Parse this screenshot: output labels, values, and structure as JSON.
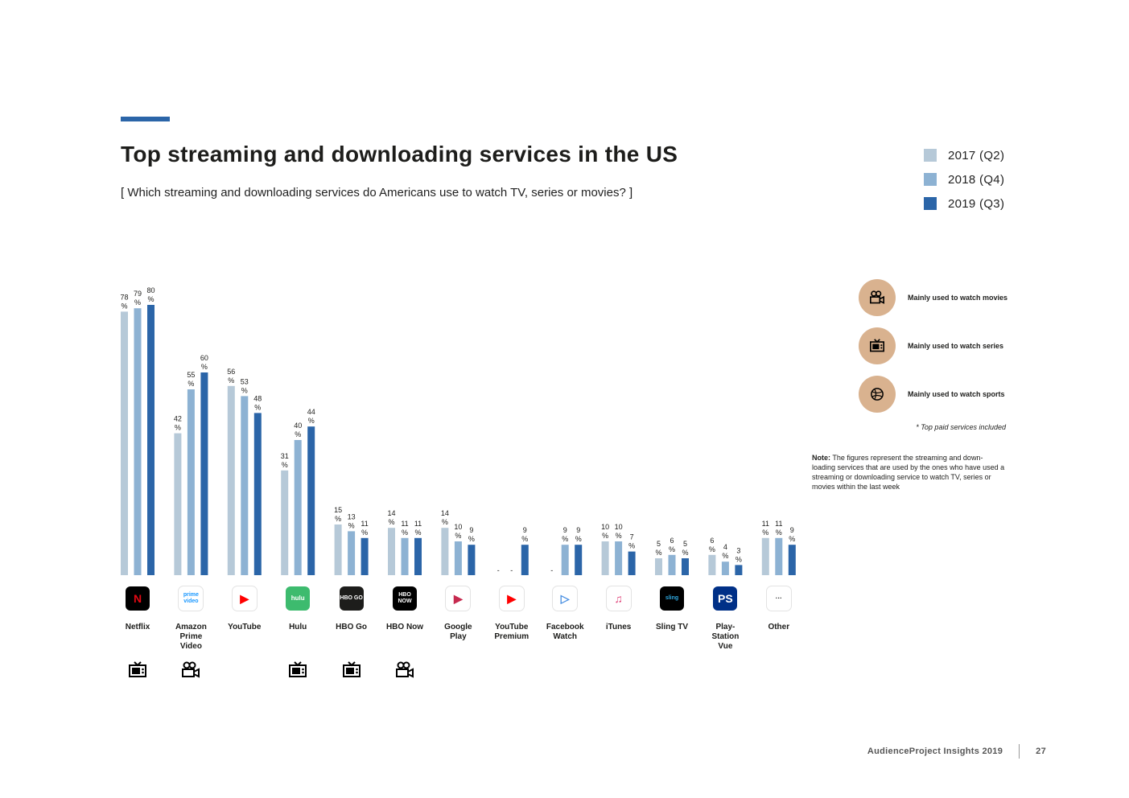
{
  "title": "Top streaming and downloading services in the US",
  "subtitle": "[ Which streaming and downloading services do Americans use to watch TV, series or movies? ]",
  "legend": [
    {
      "label": "2017 (Q2)",
      "color": "#b6c9d8"
    },
    {
      "label": "2018 (Q4)",
      "color": "#8db2d3"
    },
    {
      "label": "2019 (Q3)",
      "color": "#2b65a8"
    }
  ],
  "chart_data": {
    "type": "bar",
    "title": "Top streaming and downloading services in the US",
    "categories": [
      "Netflix",
      "Amazon Prime Video",
      "YouTube",
      "Hulu",
      "HBO Go",
      "HBO Now",
      "Google Play",
      "YouTube Premium",
      "Facebook Watch",
      "iTunes",
      "Sling TV",
      "Play-Station Vue",
      "Other"
    ],
    "category_lines": [
      [
        "Netflix"
      ],
      [
        "Amazon",
        "Prime",
        "Video"
      ],
      [
        "YouTube"
      ],
      [
        "Hulu"
      ],
      [
        "HBO Go"
      ],
      [
        "HBO Now"
      ],
      [
        "Google",
        "Play"
      ],
      [
        "YouTube",
        "Premium"
      ],
      [
        "Facebook",
        "Watch"
      ],
      [
        "iTunes"
      ],
      [
        "Sling TV"
      ],
      [
        "Play-",
        "Station",
        "Vue"
      ],
      [
        "Other"
      ]
    ],
    "series": [
      {
        "name": "2017 (Q2)",
        "color": "#b6c9d8",
        "values": [
          78,
          42,
          56,
          31,
          15,
          14,
          14,
          null,
          null,
          10,
          5,
          6,
          11
        ]
      },
      {
        "name": "2018 (Q4)",
        "color": "#8db2d3",
        "values": [
          79,
          55,
          53,
          40,
          13,
          11,
          10,
          null,
          9,
          10,
          6,
          4,
          11
        ]
      },
      {
        "name": "2019 (Q3)",
        "color": "#2b65a8",
        "values": [
          80,
          60,
          48,
          44,
          11,
          11,
          9,
          9,
          9,
          7,
          5,
          3,
          9
        ]
      }
    ],
    "missing_label": "-",
    "unit": "%",
    "ylim": [
      0,
      80
    ],
    "xlabel": "",
    "ylabel": ""
  },
  "logos": [
    {
      "name": "netflix-logo",
      "text": "N",
      "bg": "#000000",
      "fg": "#e50914"
    },
    {
      "name": "prime-video-logo",
      "text": "prime video",
      "bg": "#ffffff",
      "fg": "#1a98ff"
    },
    {
      "name": "youtube-logo",
      "text": "▶",
      "bg": "#ffffff",
      "fg": "#ff0000"
    },
    {
      "name": "hulu-logo",
      "text": "hulu",
      "bg": "#3dbb6e",
      "fg": "#ffffff"
    },
    {
      "name": "hbo-go-logo",
      "text": "HBO GO",
      "bg": "#1d1d1b",
      "fg": "#ffffff"
    },
    {
      "name": "hbo-now-logo",
      "text": "HBO NOW",
      "bg": "#000000",
      "fg": "#ffffff"
    },
    {
      "name": "google-play-logo",
      "text": "▶",
      "bg": "#ffffff",
      "fg": "#c62a4f"
    },
    {
      "name": "youtube-premium-logo",
      "text": "▶",
      "bg": "#ffffff",
      "fg": "#ff0000"
    },
    {
      "name": "facebook-watch-logo",
      "text": "▷",
      "bg": "#ffffff",
      "fg": "#4a90e2"
    },
    {
      "name": "itunes-logo",
      "text": "♫",
      "bg": "#ffffff",
      "fg": "#e0457b"
    },
    {
      "name": "sling-tv-logo",
      "text": "sling",
      "bg": "#000000",
      "fg": "#2fa8e0"
    },
    {
      "name": "playstation-vue-logo",
      "text": "PS",
      "bg": "#003087",
      "fg": "#ffffff"
    },
    {
      "name": "other-logo",
      "text": "···",
      "bg": "#ffffff",
      "fg": "#1d1d1b"
    }
  ],
  "usage_icons": [
    {
      "category_index": 0,
      "icon": "tv-icon"
    },
    {
      "category_index": 1,
      "icon": "camera-icon"
    },
    {
      "category_index": 3,
      "icon": "tv-icon"
    },
    {
      "category_index": 4,
      "icon": "tv-icon"
    },
    {
      "category_index": 5,
      "icon": "camera-icon"
    }
  ],
  "key": [
    {
      "icon": "camera-icon",
      "label": "Mainly used to watch movies"
    },
    {
      "icon": "tv-icon",
      "label": "Mainly used to watch series"
    },
    {
      "icon": "sports-ball-icon",
      "label": "Mainly used to watch sports"
    }
  ],
  "paid_note": "* Top paid services included",
  "note": {
    "label": "Note:",
    "text": " The figures represent the streaming and down-loading services that are used by the ones who have used a streaming or downloading service to watch TV, series or movies within the last week"
  },
  "footer": {
    "source": "AudienceProject Insights 2019",
    "page": "27"
  },
  "colors": {
    "accent": "#2b65a8",
    "key_circle": "#d9b28f"
  }
}
